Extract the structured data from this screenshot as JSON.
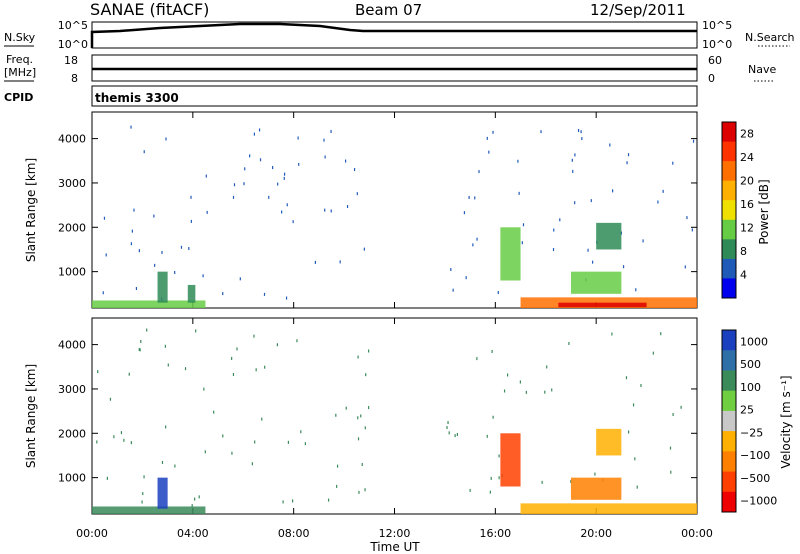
{
  "header": {
    "title": "SANAE (fitACF)",
    "beam": "Beam 07",
    "date": "12/Sep/2011"
  },
  "noise_panel": {
    "left_label": "N.Sky",
    "left_ticks": [
      "10^5",
      "10^0"
    ],
    "right_ticks": [
      "10^5",
      "10^0"
    ],
    "right_label": "N.Search",
    "right_label_style": "dotted"
  },
  "freq_panel": {
    "left_label_line1": "Freq.",
    "left_label_line2": "[MHz]",
    "left_ticks": [
      "18",
      "8"
    ],
    "right_ticks": [
      "60",
      "0"
    ],
    "right_label": "Nave",
    "right_label_style": "dotted"
  },
  "cpid_panel": {
    "label": "CPID",
    "value": "themis 3300"
  },
  "colors": {
    "power_scale": [
      "#0000ee",
      "#1f5ab8",
      "#2e8b57",
      "#66cc44",
      "#f0e000",
      "#ffb000",
      "#ff7000",
      "#ff3300",
      "#dd0000"
    ],
    "velocity_scale": [
      "#1a3fbf",
      "#2e6fa8",
      "#3a8a5a",
      "#6fcf40",
      "#c8c8c8",
      "#ffb000",
      "#ff8000",
      "#ff4000",
      "#ee0000"
    ]
  },
  "chart_data": [
    {
      "type": "heatmap",
      "name": "power",
      "x_ticks": [
        "00:00",
        "04:00",
        "08:00",
        "12:00",
        "16:00",
        "20:00",
        "00:00"
      ],
      "xlim_hours": [
        0,
        24
      ],
      "ylabel": "Slant Range [km]",
      "y_ticks": [
        "1000",
        "2000",
        "3000",
        "4000"
      ],
      "ylim_km": [
        180,
        4600
      ],
      "colorbar_label": "Power [dB]",
      "colorbar_ticks": [
        "4",
        "8",
        "12",
        "16",
        "20",
        "24",
        "28"
      ],
      "colorbar_range": [
        0,
        30
      ],
      "blobs": [
        {
          "t0": 0.0,
          "t1": 4.5,
          "r0": 180,
          "r1": 350,
          "level": 3
        },
        {
          "t0": 2.6,
          "t1": 3.0,
          "r0": 300,
          "r1": 1000,
          "level": 2
        },
        {
          "t0": 3.8,
          "t1": 4.1,
          "r0": 300,
          "r1": 700,
          "level": 2
        },
        {
          "t0": 16.2,
          "t1": 17.0,
          "r0": 800,
          "r1": 2000,
          "level": 3
        },
        {
          "t0": 17.0,
          "t1": 24.0,
          "r0": 180,
          "r1": 420,
          "level": 6
        },
        {
          "t0": 18.5,
          "t1": 22.0,
          "r0": 200,
          "r1": 300,
          "level": 8
        },
        {
          "t0": 19.0,
          "t1": 21.0,
          "r0": 500,
          "r1": 1000,
          "level": 3
        },
        {
          "t0": 20.0,
          "t1": 21.0,
          "r0": 1500,
          "r1": 2100,
          "level": 2
        }
      ]
    },
    {
      "type": "heatmap",
      "name": "velocity",
      "x_ticks": [
        "00:00",
        "04:00",
        "08:00",
        "12:00",
        "16:00",
        "20:00",
        "00:00"
      ],
      "xlabel": "Time UT",
      "xlim_hours": [
        0,
        24
      ],
      "ylabel": "Slant Range [km]",
      "y_ticks": [
        "1000",
        "2000",
        "3000",
        "4000"
      ],
      "ylim_km": [
        180,
        4600
      ],
      "colorbar_label": "Velocity [m s⁻¹]",
      "colorbar_ticks": [
        "1000",
        "500",
        "100",
        "25",
        "−25",
        "−100",
        "−500",
        "−1000"
      ],
      "blobs": [
        {
          "t0": 0.0,
          "t1": 4.5,
          "r0": 180,
          "r1": 350,
          "level": 2
        },
        {
          "t0": 2.6,
          "t1": 3.0,
          "r0": 300,
          "r1": 1000,
          "level": 0
        },
        {
          "t0": 16.2,
          "t1": 17.0,
          "r0": 800,
          "r1": 2000,
          "level": 7
        },
        {
          "t0": 17.0,
          "t1": 24.0,
          "r0": 180,
          "r1": 420,
          "level": 5
        },
        {
          "t0": 19.0,
          "t1": 21.0,
          "r0": 500,
          "r1": 1000,
          "level": 6
        },
        {
          "t0": 20.0,
          "t1": 21.0,
          "r0": 1500,
          "r1": 2100,
          "level": 5
        }
      ]
    }
  ]
}
